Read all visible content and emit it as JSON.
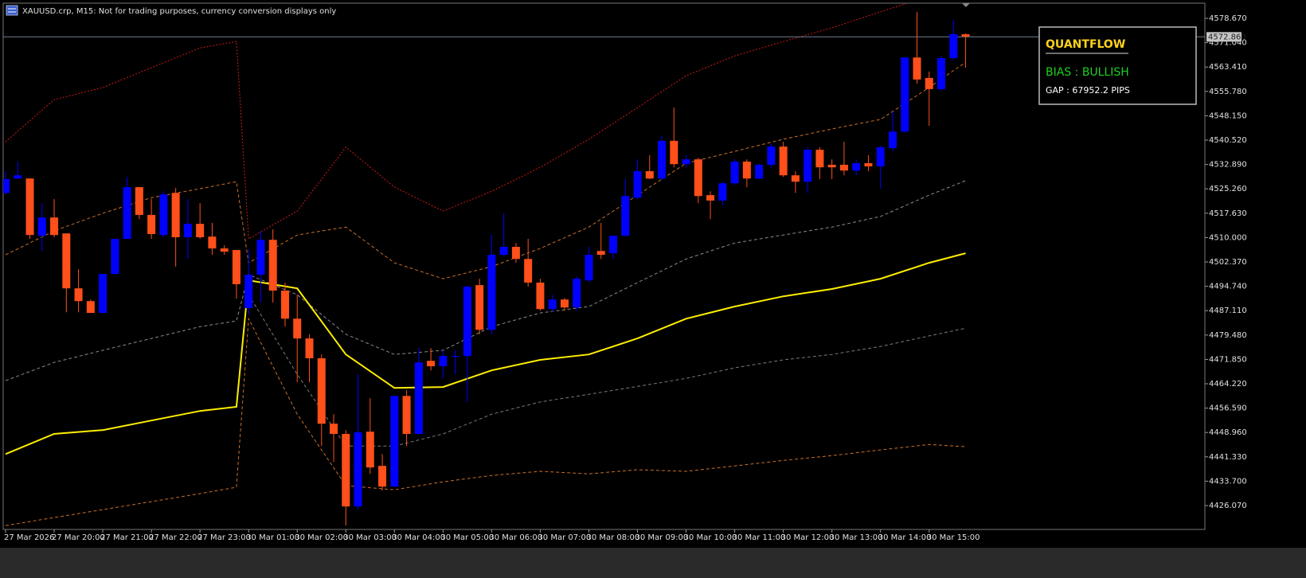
{
  "chart_data": {
    "type": "candlestick",
    "title": "XAUUSD.crp, M15:  Not for trading purposes, currency conversion displays only",
    "x_labels": [
      "27 Mar 2026",
      "27 Mar 20:00",
      "27 Mar 21:00",
      "27 Mar 22:00",
      "27 Mar 23:00",
      "30 Mar 01:00",
      "30 Mar 02:00",
      "30 Mar 03:00",
      "30 Mar 04:00",
      "30 Mar 05:00",
      "30 Mar 06:00",
      "30 Mar 07:00",
      "30 Mar 08:00",
      "30 Mar 09:00",
      "30 Mar 10:00",
      "30 Mar 11:00",
      "30 Mar 12:00",
      "30 Mar 13:00",
      "30 Mar 14:00",
      "30 Mar 15:00"
    ],
    "ylim": [
      4418.59,
      4583.16
    ],
    "yticks": [
      {
        "value": 4578.67,
        "label": "4578.670"
      },
      {
        "value": 4571.04,
        "label": "4571.040"
      },
      {
        "value": 4563.41,
        "label": "4563.410"
      },
      {
        "value": 4555.78,
        "label": "4555.780"
      },
      {
        "value": 4548.15,
        "label": "4548.150"
      },
      {
        "value": 4540.52,
        "label": "4540.520"
      },
      {
        "value": 4532.89,
        "label": "4532.890"
      },
      {
        "value": 4525.26,
        "label": "4525.260"
      },
      {
        "value": 4517.63,
        "label": "4517.630"
      },
      {
        "value": 4510,
        "label": "4510.000"
      },
      {
        "value": 4502.37,
        "label": "4502.370"
      },
      {
        "value": 4494.74,
        "label": "4494.740"
      },
      {
        "value": 4487.11,
        "label": "4487.110"
      },
      {
        "value": 4479.48,
        "label": "4479.480"
      },
      {
        "value": 4471.85,
        "label": "4471.850"
      },
      {
        "value": 4464.22,
        "label": "4464.220"
      },
      {
        "value": 4456.59,
        "label": "4456.590"
      },
      {
        "value": 4448.96,
        "label": "4448.960"
      },
      {
        "value": 4441.33,
        "label": "4441.330"
      },
      {
        "value": 4433.7,
        "label": "4433.700"
      },
      {
        "value": 4426.07,
        "label": "4426.070"
      }
    ],
    "grid": false,
    "up_color": "#0000ff",
    "down_color": "#ff4f1a",
    "candles": {
      "open": [
        4524.0,
        4528.5,
        4528.5,
        4510.6,
        4516.3,
        4511.3,
        4494.1,
        4490.1,
        4486.4,
        4498.6,
        4509.6,
        4525.8,
        4517.1,
        4510.8,
        4524.0,
        4510.1,
        4514.3,
        4510.3,
        4506.6,
        4506.1,
        4487.9,
        4498.4,
        4509.3,
        4493.4,
        4484.6,
        4478.4,
        4472.2,
        4451.7,
        4448.5,
        4425.8,
        4449.2,
        4438.5,
        4432.0,
        4460.4,
        4448.5,
        4471.4,
        4469.7,
        4472.9,
        4472.9,
        4495.1,
        4481.1,
        4504.6,
        4507.1,
        4503.3,
        4495.9,
        4487.6,
        4490.6,
        4488.1,
        4496.6,
        4505.8,
        4505.1,
        4510.6,
        4522.5,
        4530.8,
        4528.5,
        4540.3,
        4533.0,
        4534.5,
        4523.3,
        4521.6,
        4527.0,
        4533.8,
        4528.5,
        4532.8,
        4538.5,
        4529.5,
        4527.5,
        4537.5,
        4532.8,
        4532.8,
        4531.0,
        4533.3,
        4532.3,
        4538.0,
        4543.2,
        4566.4,
        4560.0,
        4556.5,
        4566.2,
        4573.7
      ],
      "high": [
        4530.8,
        4533.8,
        4528.5,
        4520.8,
        4522.1,
        4511.3,
        4500.1,
        4490.6,
        4498.6,
        4509.6,
        4529.0,
        4525.8,
        4522.1,
        4524.5,
        4525.5,
        4522.1,
        4520.8,
        4514.6,
        4507.6,
        4506.1,
        4506.3,
        4512.1,
        4512.6,
        4495.9,
        4492.1,
        4479.7,
        4473.4,
        4454.7,
        4449.7,
        4467.2,
        4459.7,
        4442.2,
        4460.4,
        4462.2,
        4475.4,
        4475.4,
        4474.7,
        4474.7,
        4495.1,
        4497.1,
        4510.8,
        4517.6,
        4508.3,
        4509.6,
        4497.1,
        4492.1,
        4491.1,
        4497.9,
        4507.1,
        4514.6,
        4510.6,
        4528.3,
        4534.5,
        4535.8,
        4542.0,
        4550.7,
        4535.8,
        4535.0,
        4524.5,
        4527.5,
        4534.5,
        4534.5,
        4533.3,
        4539.5,
        4540.0,
        4530.8,
        4538.3,
        4538.3,
        4534.5,
        4540.0,
        4534.5,
        4535.8,
        4538.8,
        4549.5,
        4566.4,
        4580.7,
        4562.0,
        4566.9,
        4578.2,
        4573.9
      ],
      "low": [
        4523.3,
        4528.3,
        4509.6,
        4505.8,
        4510.1,
        4486.6,
        4486.6,
        4486.4,
        4486.4,
        4498.6,
        4509.6,
        4515.8,
        4509.6,
        4510.1,
        4500.9,
        4503.3,
        4509.6,
        4504.6,
        4504.6,
        4490.9,
        4485.9,
        4489.6,
        4489.6,
        4482.1,
        4464.7,
        4464.7,
        4444.7,
        4439.7,
        4419.8,
        4424.8,
        4436.0,
        4430.8,
        4432.0,
        4444.7,
        4448.5,
        4468.4,
        4465.9,
        4467.2,
        4458.5,
        4479.7,
        4479.7,
        4504.1,
        4502.1,
        4494.6,
        4487.1,
        4486.6,
        4487.1,
        4487.1,
        4495.9,
        4503.3,
        4503.3,
        4510.3,
        4522.1,
        4528.3,
        4528.0,
        4532.0,
        4532.0,
        4520.8,
        4515.8,
        4520.1,
        4526.5,
        4525.8,
        4528.3,
        4532.0,
        4529.0,
        4524.0,
        4524.0,
        4528.3,
        4528.3,
        4529.5,
        4529.5,
        4530.8,
        4525.3,
        4537.0,
        4542.8,
        4558.2,
        4545.0,
        4556.0,
        4565.7,
        4563.2
      ],
      "close": [
        4528.3,
        4529.5,
        4510.8,
        4516.3,
        4510.8,
        4494.1,
        4490.1,
        4486.4,
        4498.6,
        4509.6,
        4525.8,
        4517.1,
        4511.1,
        4523.5,
        4510.1,
        4514.3,
        4510.1,
        4506.6,
        4505.6,
        4495.4,
        4498.4,
        4509.3,
        4493.4,
        4484.6,
        4478.4,
        4472.2,
        4451.7,
        4448.5,
        4425.8,
        4449.0,
        4438.0,
        4432.0,
        4460.4,
        4448.5,
        4470.9,
        4469.7,
        4472.9,
        4472.9,
        4494.6,
        4481.1,
        4504.6,
        4507.1,
        4503.3,
        4495.9,
        4487.6,
        4490.6,
        4488.1,
        4497.1,
        4504.6,
        4504.6,
        4510.6,
        4523.0,
        4530.8,
        4528.5,
        4540.3,
        4533.0,
        4534.5,
        4523.0,
        4521.6,
        4527.0,
        4533.8,
        4528.5,
        4532.8,
        4538.5,
        4529.5,
        4527.5,
        4537.5,
        4532.0,
        4532.0,
        4531.0,
        4533.3,
        4532.3,
        4538.3,
        4543.2,
        4566.4,
        4559.5,
        4556.5,
        4566.2,
        4573.7,
        4572.9
      ]
    },
    "indicator_x": [
      0,
      4,
      8,
      12,
      16,
      19,
      20,
      24,
      28,
      32,
      36,
      40,
      44,
      48,
      52,
      56,
      60,
      64,
      68,
      72,
      76,
      79
    ],
    "lines": [
      {
        "color": "#cc1a1a",
        "style": "dotted",
        "values": [
          4540.0,
          4553.2,
          4557.0,
          4563.2,
          4569.4,
          4571.4,
          4509.6,
          4518.3,
          4538.3,
          4525.8,
          4518.3,
          4524.5,
          4532.0,
          4540.8,
          4550.7,
          4560.7,
          4566.9,
          4571.4,
          4575.7,
          4580.7,
          4585.6,
          4588.1
        ]
      },
      {
        "color": "#c8702a",
        "style": "dashed",
        "values": [
          4504.6,
          4512.1,
          4517.6,
          4522.5,
          4525.3,
          4527.5,
          4502.1,
          4510.8,
          4513.3,
          4502.1,
          4497.1,
          4500.9,
          4506.6,
          4513.3,
          4523.3,
          4533.3,
          4537.0,
          4540.8,
          4544.0,
          4547.0,
          4557.0,
          4564.9
        ]
      },
      {
        "color": "#8a8a8a",
        "style": "dashed",
        "values": [
          4465.2,
          4470.9,
          4474.7,
          4478.4,
          4482.1,
          4483.9,
          4498.4,
          4492.1,
          4479.7,
          4473.4,
          4474.7,
          4482.1,
          4486.4,
          4488.4,
          4495.9,
          4503.3,
          4508.3,
          4510.8,
          4513.3,
          4516.6,
          4523.3,
          4527.8
        ]
      },
      {
        "color": "#7a7a7a",
        "style": "dashed",
        "values": [
          null,
          null,
          null,
          null,
          null,
          null,
          4492.1,
          4467.2,
          4444.7,
          4444.7,
          4448.5,
          4454.7,
          4458.5,
          4460.9,
          4463.4,
          4465.9,
          4469.2,
          4471.7,
          4473.4,
          4475.9,
          4479.2,
          4481.6
        ]
      },
      {
        "color": "#c8702a",
        "style": "dashed",
        "values": [
          4419.8,
          4422.3,
          4424.8,
          4427.3,
          4429.8,
          4431.8,
          4484.6,
          4454.7,
          4432.3,
          4431.0,
          4433.5,
          4435.5,
          4436.8,
          4436.0,
          4437.3,
          4436.8,
          4438.5,
          4440.2,
          4441.7,
          4443.5,
          4445.2,
          4444.5
        ]
      },
      {
        "color": "#ffee00",
        "style": "solid",
        "values": [
          4442.2,
          4448.5,
          4449.7,
          4452.7,
          4455.7,
          4457.0,
          4496.6,
          4494.1,
          4473.4,
          4462.9,
          4463.2,
          4468.4,
          4471.7,
          4473.4,
          4478.4,
          4484.6,
          4488.4,
          4491.6,
          4493.9,
          4497.1,
          4502.1,
          4505.1
        ]
      }
    ],
    "current_price": {
      "value": 4572.86,
      "label": "4572.860"
    },
    "panel": {
      "title": "QUANTFLOW",
      "bias": "BIAS : BULLISH",
      "gap": "GAP : 67952.2 PIPS"
    }
  }
}
